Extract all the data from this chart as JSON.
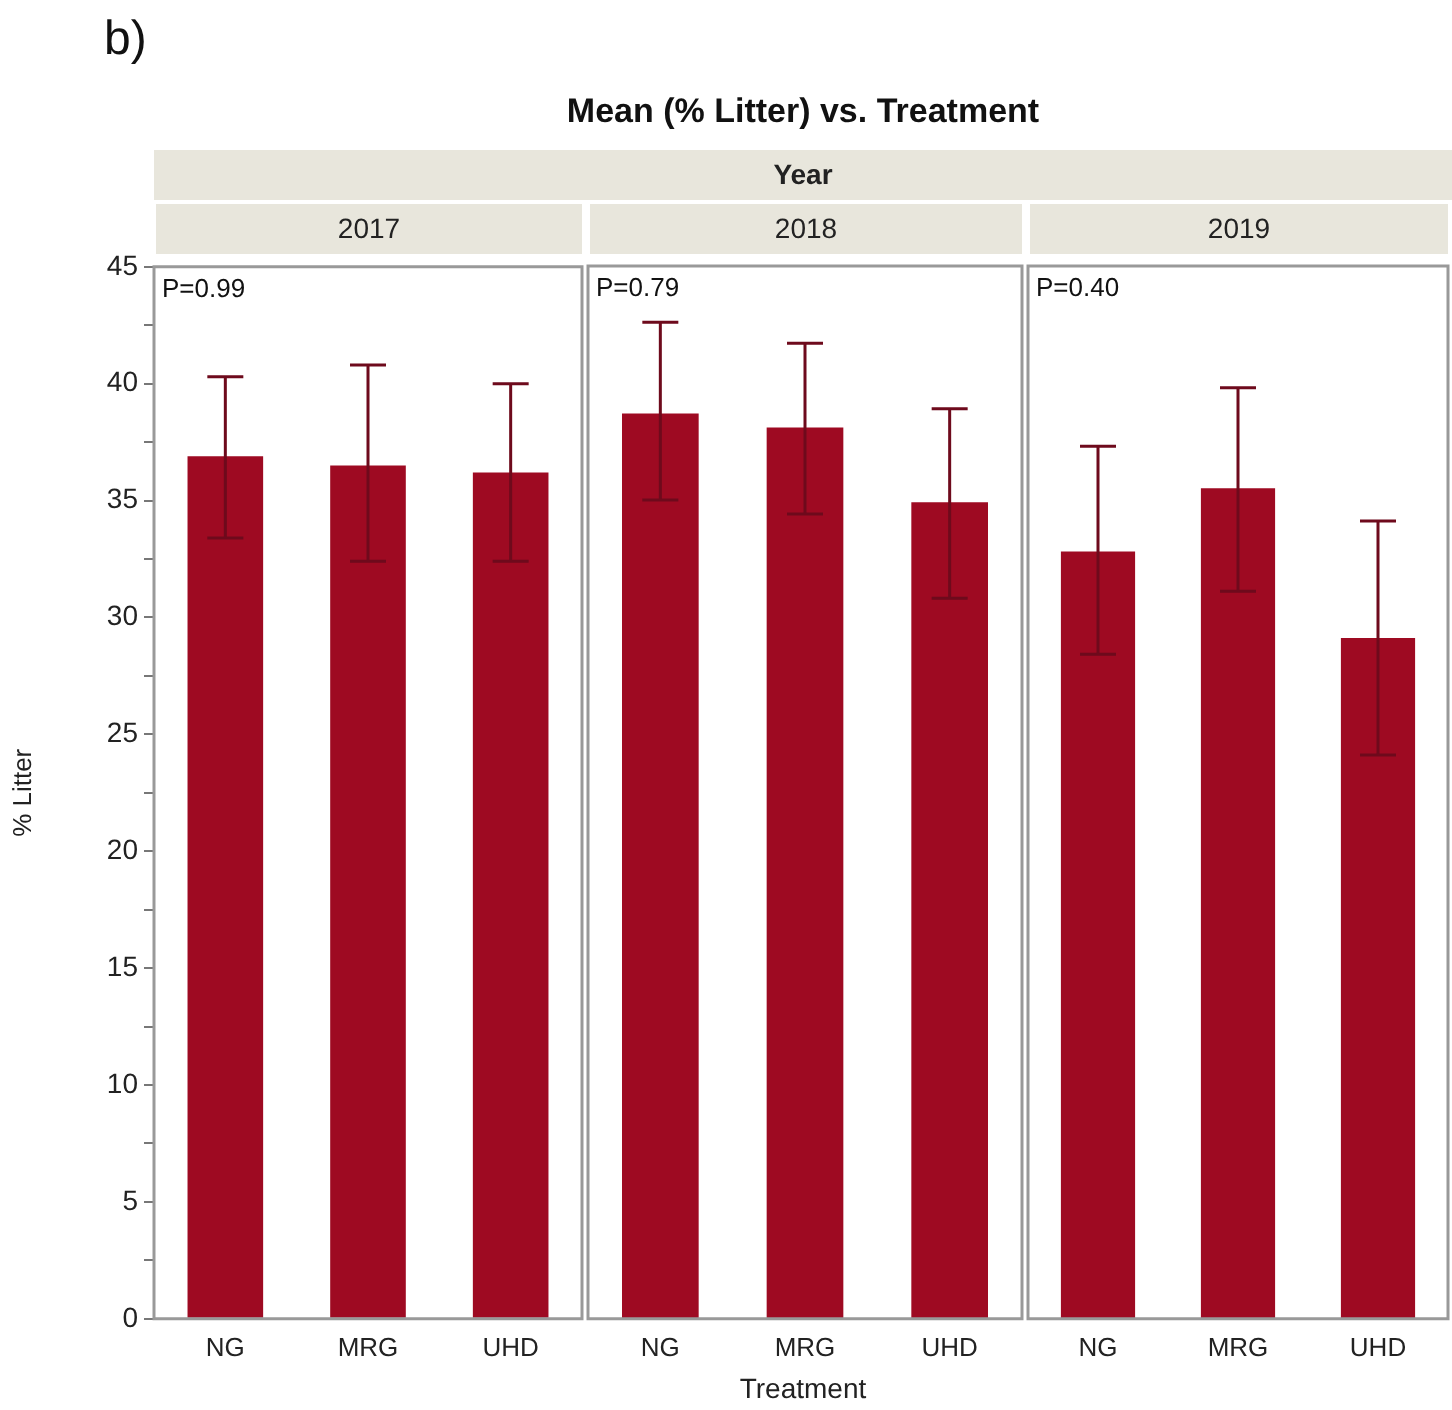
{
  "chart_data": [
    {
      "type": "bar",
      "subtitle": "2017",
      "ylabel": "% Litter",
      "annotations": [
        "b)",
        "Year",
        "P=0.99"
      ],
      "categories": [
        "NG",
        "MRG",
        "UHD"
      ],
      "values": [
        36.9,
        36.5,
        36.2
      ],
      "errors": [
        [
          33.4,
          40.3
        ],
        [
          32.4,
          40.8
        ],
        [
          32.4,
          40.0
        ]
      ],
      "color": "#9e0a22",
      "ylim": [
        0,
        45
      ],
      "yticks": [
        0,
        {
          "value": 2.5,
          "label": null
        },
        5,
        {
          "value": 7.5,
          "label": null
        },
        10,
        {
          "value": 12.5,
          "label": null
        },
        15,
        {
          "value": 17.5,
          "label": null
        },
        20,
        {
          "value": 22.5,
          "label": null
        },
        25,
        {
          "value": 27.5,
          "label": null
        },
        30,
        {
          "value": 32.5,
          "label": null
        },
        35,
        {
          "value": 37.5,
          "label": null
        },
        40,
        {
          "value": 42.5,
          "label": null
        },
        45
      ],
      "grid": false,
      "legend": false
    },
    {
      "type": "bar",
      "title": "Mean (% Litter) vs. Treatment",
      "subtitle": "2018",
      "xlabel": "Treatment",
      "annotations": [
        "P=0.79"
      ],
      "categories": [
        "NG",
        "MRG",
        "UHD"
      ],
      "values": [
        38.7,
        38.1,
        34.9
      ],
      "errors": [
        [
          35.0,
          42.6
        ],
        [
          34.4,
          41.7
        ],
        [
          30.8,
          38.9
        ]
      ],
      "color": "#9e0a22",
      "ylim": [
        0,
        45
      ],
      "tick_labels": "x",
      "grid": false,
      "legend": false
    },
    {
      "type": "bar",
      "subtitle": "2019",
      "annotations": [
        "P=0.40"
      ],
      "categories": [
        "NG",
        "MRG",
        "UHD"
      ],
      "values": [
        32.8,
        35.5,
        29.1
      ],
      "errors": [
        [
          28.4,
          37.3
        ],
        [
          31.1,
          39.8
        ],
        [
          24.1,
          34.1
        ]
      ],
      "color": "#9e0a22",
      "ylim": [
        0,
        45
      ],
      "tick_labels": "x",
      "grid": false,
      "legend": false
    }
  ]
}
